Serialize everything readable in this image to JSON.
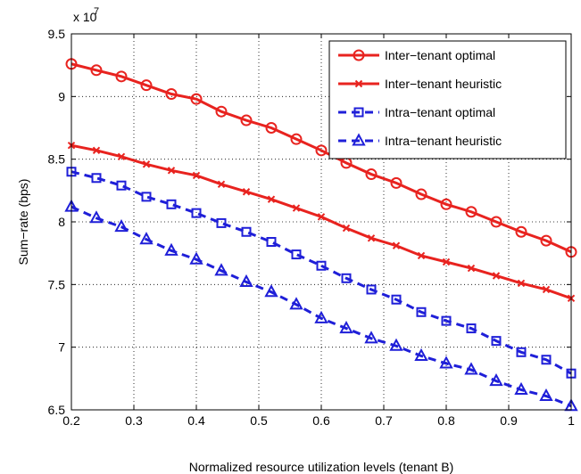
{
  "chart_data": {
    "type": "line",
    "xlabel": "Normalized resource utilization levels (tenant B)",
    "ylabel": "Sum−rate (bps)",
    "y_scale_note": "x 10",
    "y_scale_exponent": "7",
    "xlim": [
      0.2,
      1.0
    ],
    "ylim": [
      6.5,
      9.5
    ],
    "x_ticks": [
      "0.2",
      "0.3",
      "0.4",
      "0.5",
      "0.6",
      "0.7",
      "0.8",
      "0.9",
      "1"
    ],
    "y_ticks": [
      "6.5",
      "7",
      "7.5",
      "8",
      "8.5",
      "9",
      "9.5"
    ],
    "grid": "dotted",
    "legend_position": "top-right",
    "x": [
      0.2,
      0.24,
      0.28,
      0.32,
      0.36,
      0.4,
      0.44,
      0.48,
      0.52,
      0.56,
      0.6,
      0.64,
      0.68,
      0.72,
      0.76,
      0.8,
      0.84,
      0.88,
      0.92,
      0.96,
      1.0
    ],
    "series": [
      {
        "name": "Inter−tenant optimal",
        "color": "#e8231f",
        "line_style": "solid",
        "marker": "circle",
        "values": [
          9.26,
          9.21,
          9.16,
          9.09,
          9.02,
          8.98,
          8.88,
          8.81,
          8.75,
          8.66,
          8.57,
          8.47,
          8.38,
          8.31,
          8.22,
          8.14,
          8.08,
          8.0,
          7.92,
          7.85,
          7.76
        ]
      },
      {
        "name": "Inter−tenant heuristic",
        "color": "#e8231f",
        "line_style": "solid",
        "marker": "x",
        "values": [
          8.61,
          8.57,
          8.52,
          8.46,
          8.41,
          8.37,
          8.3,
          8.24,
          8.18,
          8.11,
          8.04,
          7.95,
          7.87,
          7.81,
          7.73,
          7.68,
          7.63,
          7.57,
          7.51,
          7.46,
          7.39
        ]
      },
      {
        "name": "Intra−tenant optimal",
        "color": "#1f1fd8",
        "line_style": "dashed",
        "marker": "square",
        "values": [
          8.4,
          8.35,
          8.29,
          8.2,
          8.14,
          8.07,
          7.99,
          7.92,
          7.84,
          7.74,
          7.65,
          7.55,
          7.46,
          7.38,
          7.28,
          7.21,
          7.15,
          7.05,
          6.96,
          6.9,
          6.79
        ]
      },
      {
        "name": "Intra−tenant heuristic",
        "color": "#1f1fd8",
        "line_style": "dashed",
        "marker": "triangle",
        "values": [
          8.12,
          8.03,
          7.96,
          7.86,
          7.77,
          7.7,
          7.61,
          7.52,
          7.44,
          7.34,
          7.23,
          7.15,
          7.07,
          7.01,
          6.93,
          6.87,
          6.82,
          6.73,
          6.66,
          6.61,
          6.53
        ]
      }
    ]
  }
}
